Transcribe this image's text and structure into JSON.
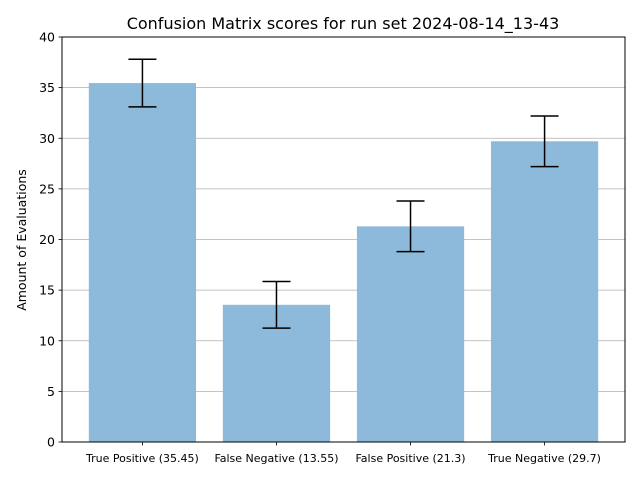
{
  "chart_data": {
    "type": "bar",
    "title": "Confusion Matrix scores for run set 2024-08-14_13-43",
    "xlabel": "",
    "ylabel": "Amount of Evaluations",
    "categories": [
      "True Positive (35.45)",
      "False Negative (13.55)",
      "False Positive (21.3)",
      "True Negative (29.7)"
    ],
    "values": [
      35.45,
      13.55,
      21.3,
      29.7
    ],
    "error": [
      2.35,
      2.3,
      2.5,
      2.5
    ],
    "ylim": [
      0,
      40
    ],
    "yticks": [
      "0",
      "5",
      "10",
      "15",
      "20",
      "25",
      "30",
      "35",
      "40"
    ],
    "grid": "y",
    "bar_color": "#8db9da",
    "bar_opacity": 1,
    "error_color": "#000000",
    "grid_color": "#b0b0b0"
  }
}
